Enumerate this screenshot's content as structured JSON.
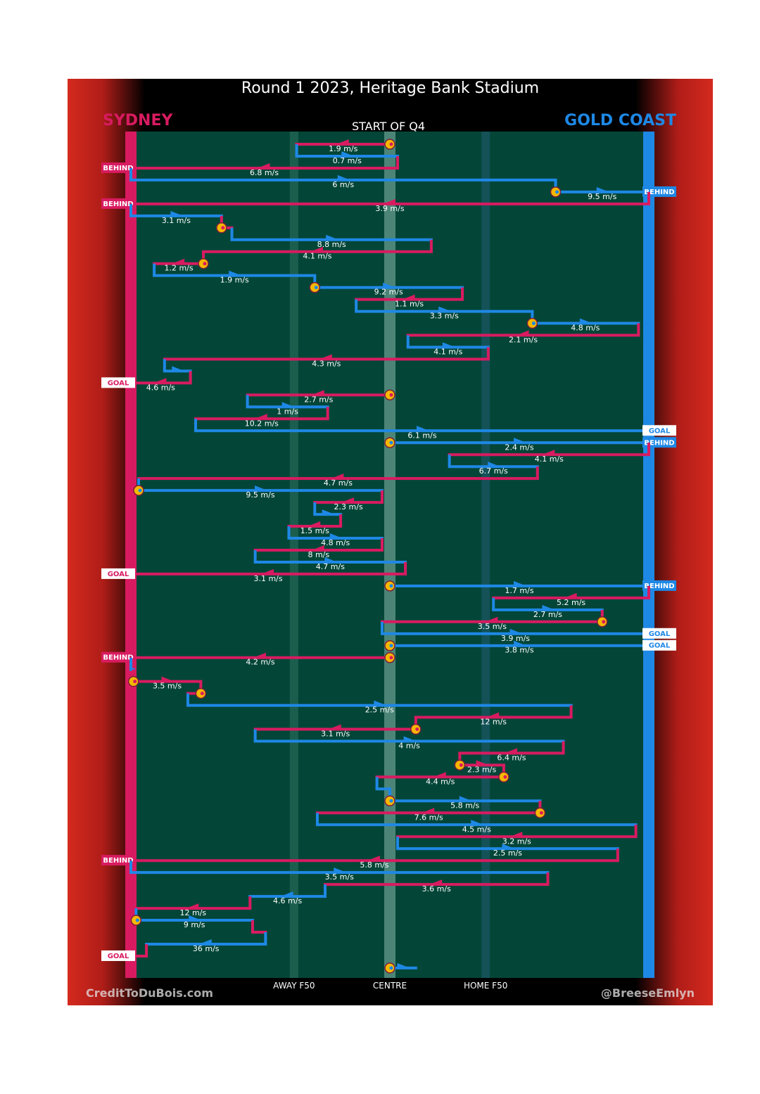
{
  "title": "Round 1 2023, Heritage Bank Stadium",
  "teams": {
    "left": "SYDNEY",
    "right": "GOLD COAST"
  },
  "period_label": "START OF Q4",
  "axis_labels": [
    "AWAY F50",
    "CENTRE",
    "HOME F50"
  ],
  "credits": {
    "left": "CreditToDuBois.com",
    "right": "@BreeseEmlyn"
  },
  "colors": {
    "sydney": "#d81b60",
    "gold_coast": "#1e88e5",
    "field": "#034638",
    "stoppage": "#f5b800"
  },
  "chart_data": {
    "type": "line",
    "title": "Round 1 2023, Heritage Bank Stadium",
    "xlabel": "",
    "ylabel": "",
    "x_axis_ticks": [
      "AWAY F50",
      "CENTRE",
      "HOME F50"
    ],
    "series": [
      {
        "name": "SYDNEY",
        "color": "#d81b60"
      },
      {
        "name": "GOLD COAST",
        "color": "#1e88e5"
      }
    ],
    "chains": [
      {
        "team": "sydney",
        "speed": "1.9 m/s",
        "x1": 0.0,
        "x2": -0.36,
        "stoppage": true
      },
      {
        "team": "gold_coast",
        "speed": "0.7 m/s",
        "x1": -0.36,
        "x2": 0.03
      },
      {
        "team": "sydney",
        "speed": "6.8 m/s",
        "x1": 0.03,
        "x2": -1.0,
        "result": "BEHIND"
      },
      {
        "team": "gold_coast",
        "speed": "6 m/s",
        "x1": -1.0,
        "x2": 0.64
      },
      {
        "team": "gold_coast",
        "speed": "9.5 m/s",
        "x1": 0.64,
        "x2": 1.0,
        "result": "BEHIND",
        "stoppage": true
      },
      {
        "team": "sydney",
        "speed": "3.9 m/s",
        "x1": 1.0,
        "x2": -1.0,
        "result": "BEHIND"
      },
      {
        "team": "gold_coast",
        "speed": "3.1 m/s",
        "x1": -1.0,
        "x2": -0.65
      },
      {
        "team": "sydney",
        "speed": "",
        "x1": -0.65,
        "x2": -0.61,
        "stoppage": true
      },
      {
        "team": "gold_coast",
        "speed": "8.8 m/s",
        "x1": -0.61,
        "x2": 0.16
      },
      {
        "team": "sydney",
        "speed": "4.1 m/s",
        "x1": 0.16,
        "x2": -0.72
      },
      {
        "team": "sydney",
        "speed": "1.2 m/s",
        "x1": -0.72,
        "x2": -0.91,
        "stoppage": true
      },
      {
        "team": "gold_coast",
        "speed": "1.9 m/s",
        "x1": -0.91,
        "x2": -0.29
      },
      {
        "team": "gold_coast",
        "speed": "9.2 m/s",
        "x1": -0.29,
        "x2": 0.28,
        "stoppage": true
      },
      {
        "team": "sydney",
        "speed": "1.1 m/s",
        "x1": 0.28,
        "x2": -0.13
      },
      {
        "team": "gold_coast",
        "speed": "3.3 m/s",
        "x1": -0.13,
        "x2": 0.55
      },
      {
        "team": "gold_coast",
        "speed": "4.8 m/s",
        "x1": 0.55,
        "x2": 0.96,
        "stoppage": true
      },
      {
        "team": "sydney",
        "speed": "2.1 m/s",
        "x1": 0.96,
        "x2": 0.07
      },
      {
        "team": "gold_coast",
        "speed": "4.1 m/s",
        "x1": 0.07,
        "x2": 0.38
      },
      {
        "team": "sydney",
        "speed": "4.3 m/s",
        "x1": 0.38,
        "x2": -0.87
      },
      {
        "team": "gold_coast",
        "speed": "",
        "x1": -0.87,
        "x2": -0.77
      },
      {
        "team": "sydney",
        "speed": "4.6 m/s",
        "x1": -0.77,
        "x2": -1.0,
        "result": "GOAL"
      },
      {
        "team": "sydney",
        "speed": "2.7 m/s",
        "x1": 0.0,
        "x2": -0.55,
        "stoppage": true
      },
      {
        "team": "gold_coast",
        "speed": "1 m/s",
        "x1": -0.55,
        "x2": -0.24
      },
      {
        "team": "sydney",
        "speed": "10.2 m/s",
        "x1": -0.24,
        "x2": -0.75
      },
      {
        "team": "gold_coast",
        "speed": "6.1 m/s",
        "x1": -0.75,
        "x2": 1.0,
        "result": "GOAL"
      },
      {
        "team": "gold_coast",
        "speed": "2.4 m/s",
        "x1": 0.0,
        "x2": 1.0,
        "result": "BEHIND",
        "stoppage": true
      },
      {
        "team": "sydney",
        "speed": "4.1 m/s",
        "x1": 1.0,
        "x2": 0.23
      },
      {
        "team": "gold_coast",
        "speed": "6.7 m/s",
        "x1": 0.23,
        "x2": 0.57
      },
      {
        "team": "sydney",
        "speed": "4.7 m/s",
        "x1": 0.57,
        "x2": -0.97
      },
      {
        "team": "gold_coast",
        "speed": "9.5 m/s",
        "x1": -0.97,
        "x2": -0.03,
        "stoppage": true
      },
      {
        "team": "sydney",
        "speed": "2.3 m/s",
        "x1": -0.03,
        "x2": -0.29
      },
      {
        "team": "gold_coast",
        "speed": "",
        "x1": -0.29,
        "x2": -0.19
      },
      {
        "team": "sydney",
        "speed": "1.5 m/s",
        "x1": -0.19,
        "x2": -0.39
      },
      {
        "team": "gold_coast",
        "speed": "4.8 m/s",
        "x1": -0.39,
        "x2": -0.03
      },
      {
        "team": "sydney",
        "speed": "8 m/s",
        "x1": -0.03,
        "x2": -0.52
      },
      {
        "team": "gold_coast",
        "speed": "4.7 m/s",
        "x1": -0.52,
        "x2": 0.06
      },
      {
        "team": "sydney",
        "speed": "3.1 m/s",
        "x1": 0.06,
        "x2": -1.0,
        "result": "GOAL"
      },
      {
        "team": "gold_coast",
        "speed": "1.7 m/s",
        "x1": 0.0,
        "x2": 1.0,
        "result": "BEHIND",
        "stoppage": true
      },
      {
        "team": "sydney",
        "speed": "5.2 m/s",
        "x1": 1.0,
        "x2": 0.4
      },
      {
        "team": "gold_coast",
        "speed": "2.7 m/s",
        "x1": 0.4,
        "x2": 0.82
      },
      {
        "team": "sydney",
        "speed": "3.5 m/s",
        "x1": 0.82,
        "x2": -0.03,
        "stoppage": true
      },
      {
        "team": "gold_coast",
        "speed": "3.9 m/s",
        "x1": -0.03,
        "x2": 1.0,
        "result": "GOAL"
      },
      {
        "team": "gold_coast",
        "speed": "3.8 m/s",
        "x1": 0.0,
        "x2": 1.0,
        "result": "GOAL",
        "stoppage": true
      },
      {
        "team": "sydney",
        "speed": "4.2 m/s",
        "x1": 0.0,
        "x2": -1.0,
        "result": "BEHIND",
        "stoppage": true
      },
      {
        "team": "gold_coast",
        "speed": "",
        "x1": -1.0,
        "x2": -0.99
      },
      {
        "team": "sydney",
        "speed": "3.5 m/s",
        "x1": -0.99,
        "x2": -0.73,
        "stoppage": true
      },
      {
        "team": "sydney",
        "speed": "",
        "x1": -0.73,
        "x2": -0.78,
        "stoppage": true
      },
      {
        "team": "gold_coast",
        "speed": "2.5 m/s",
        "x1": -0.78,
        "x2": 0.7
      },
      {
        "team": "sydney",
        "speed": "12 m/s",
        "x1": 0.7,
        "x2": 0.1
      },
      {
        "team": "sydney",
        "speed": "3.1 m/s",
        "x1": 0.1,
        "x2": -0.52,
        "stoppage": true
      },
      {
        "team": "gold_coast",
        "speed": "4 m/s",
        "x1": -0.52,
        "x2": 0.67
      },
      {
        "team": "sydney",
        "speed": "6.4 m/s",
        "x1": 0.67,
        "x2": 0.27
      },
      {
        "team": "sydney",
        "speed": "2.3 m/s",
        "x1": 0.27,
        "x2": 0.44,
        "stoppage": true
      },
      {
        "team": "sydney",
        "speed": "4.4 m/s",
        "x1": 0.44,
        "x2": -0.05,
        "stoppage": true
      },
      {
        "team": "gold_coast",
        "speed": "",
        "x1": -0.05,
        "x2": 0.0
      },
      {
        "team": "gold_coast",
        "speed": "5.8 m/s",
        "x1": 0.0,
        "x2": 0.58,
        "stoppage": true
      },
      {
        "team": "sydney",
        "speed": "7.6 m/s",
        "x1": 0.58,
        "x2": -0.28,
        "stoppage": true
      },
      {
        "team": "gold_coast",
        "speed": "4.5 m/s",
        "x1": -0.28,
        "x2": 0.95
      },
      {
        "team": "sydney",
        "speed": "3.2 m/s",
        "x1": 0.95,
        "x2": 0.03
      },
      {
        "team": "gold_coast",
        "speed": "2.5 m/s",
        "x1": 0.03,
        "x2": 0.88
      },
      {
        "team": "sydney",
        "speed": "5.8 m/s",
        "x1": 0.88,
        "x2": -1.0,
        "result": "BEHIND"
      },
      {
        "team": "gold_coast",
        "speed": "3.5 m/s",
        "x1": -1.0,
        "x2": 0.61
      },
      {
        "team": "sydney",
        "speed": "3.6 m/s",
        "x1": 0.61,
        "x2": -0.25
      },
      {
        "team": "gold_coast",
        "speed": "4.6 m/s",
        "x1": -0.25,
        "x2": -0.54
      },
      {
        "team": "sydney",
        "speed": "12 m/s",
        "x1": -0.54,
        "x2": -0.98
      },
      {
        "team": "gold_coast",
        "speed": "9 m/s",
        "x1": -0.98,
        "x2": -0.53,
        "stoppage": true
      },
      {
        "team": "sydney",
        "speed": "",
        "x1": -0.53,
        "x2": -0.48
      },
      {
        "team": "gold_coast",
        "speed": "36 m/s",
        "x1": -0.48,
        "x2": -0.94
      },
      {
        "team": "sydney",
        "speed": "",
        "x1": -0.94,
        "x2": -1.0,
        "result": "GOAL"
      },
      {
        "team": "gold_coast",
        "speed": "",
        "x1": 0.0,
        "x2": 0.1,
        "stoppage": true
      }
    ]
  }
}
